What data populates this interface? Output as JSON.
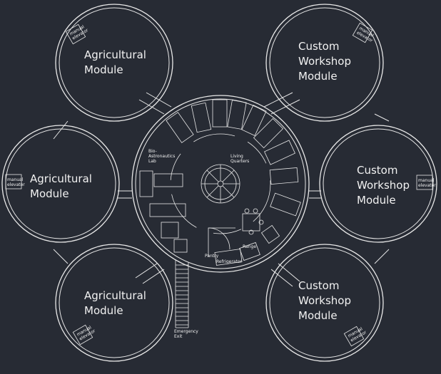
{
  "modules": [
    {
      "label_lines": [
        "Agricultural",
        "Module"
      ],
      "elevator_lines": [
        "manual",
        "elevator"
      ]
    },
    {
      "label_lines": [
        "Agricultural",
        "Module"
      ],
      "elevator_lines": [
        "manual",
        "elevator"
      ]
    },
    {
      "label_lines": [
        "Agricultural",
        "Module"
      ],
      "elevator_lines": [
        "manual",
        "elevator"
      ]
    },
    {
      "label_lines": [
        "Custom",
        "Workshop",
        "Module"
      ],
      "elevator_lines": [
        "manual",
        "elevator"
      ]
    },
    {
      "label_lines": [
        "Custom",
        "Workshop",
        "Module"
      ],
      "elevator_lines": [
        "manual",
        "elevator"
      ]
    },
    {
      "label_lines": [
        "Custom",
        "Workshop",
        "Module"
      ],
      "elevator_lines": [
        "manual",
        "elevator"
      ]
    }
  ],
  "hub_labels": {
    "lab": [
      "Bio-",
      "Astronautics",
      "Lab"
    ],
    "living": [
      "Living",
      "Quarters"
    ],
    "pantry": "Pantry",
    "refrigerator": "Refrigerator",
    "range": "Range",
    "exit": [
      "Emergency",
      "Exit"
    ]
  },
  "colors": {
    "background": "#272b34",
    "lines": "#e8e8e8"
  }
}
